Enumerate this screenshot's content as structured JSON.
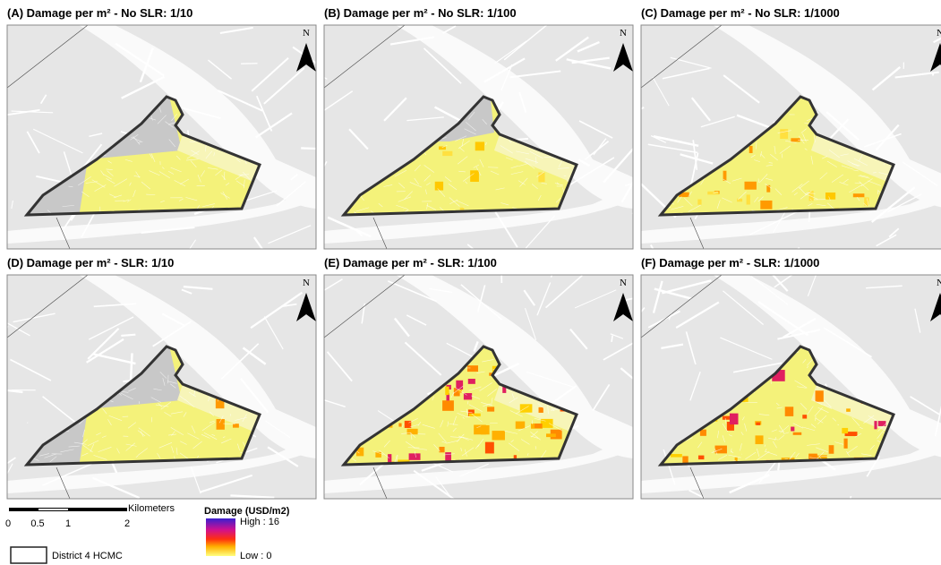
{
  "panels": [
    {
      "title": "(A) Damage per m² - No SLR: 1/10"
    },
    {
      "title": "(B) Damage per m² - No SLR: 1/100"
    },
    {
      "title": "(C) Damage per m² - No SLR: 1/1000"
    },
    {
      "title": "(D) Damage per m² - SLR: 1/10"
    },
    {
      "title": "(E) Damage per m² - SLR: 1/100"
    },
    {
      "title": "(F) Damage per m² - SLR: 1/1000"
    }
  ],
  "north_label": "N",
  "scale_bar": {
    "ticks": [
      "0",
      "0.5",
      "1",
      "2"
    ],
    "unit": "Kilometers"
  },
  "legend": {
    "title": "Damage (USD/m2)",
    "high": "High : 16",
    "low": "Low : 0",
    "boundary": "District 4 HCMC"
  }
}
